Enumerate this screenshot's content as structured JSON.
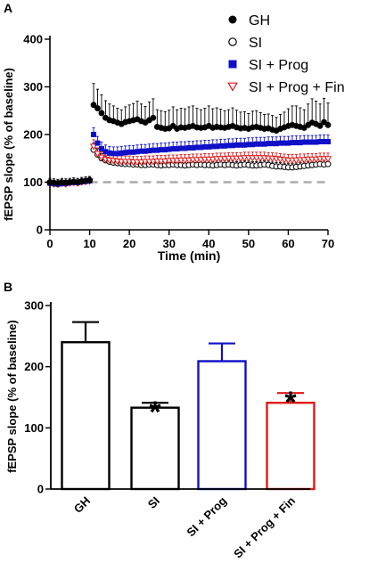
{
  "panels": {
    "a_label": "A",
    "b_label": "B"
  },
  "colors": {
    "gh": "#000000",
    "si": "#000000",
    "si_prog": "#1010c8",
    "si_prog_fin": "#e01818",
    "baseline": "#aaaaaa"
  },
  "chart_data": [
    {
      "panel": "A",
      "type": "scatter",
      "xlabel": "Time (min)",
      "ylabel": "fEPSP slope (% of baseline)",
      "xlim": [
        0,
        70
      ],
      "ylim": [
        0,
        400
      ],
      "xticks": [
        "0",
        "10",
        "20",
        "30",
        "40",
        "50",
        "60",
        "70"
      ],
      "yticks": [
        "0",
        "100",
        "200",
        "300",
        "400"
      ],
      "reference_line": 100,
      "legend_position": "top-right",
      "series": [
        {
          "name": "GH",
          "marker": "filled-circle",
          "color": "#000000",
          "x": [
            0,
            1,
            2,
            3,
            4,
            5,
            6,
            7,
            8,
            9,
            10,
            11,
            12,
            13,
            14,
            15,
            16,
            17,
            18,
            19,
            20,
            21,
            22,
            23,
            24,
            25,
            26,
            27,
            28,
            29,
            30,
            31,
            32,
            33,
            34,
            35,
            36,
            37,
            38,
            39,
            40,
            41,
            42,
            43,
            44,
            45,
            46,
            47,
            48,
            49,
            50,
            51,
            52,
            53,
            54,
            55,
            56,
            57,
            58,
            59,
            60,
            61,
            62,
            63,
            64,
            65,
            66,
            67,
            68,
            69,
            70
          ],
          "y": [
            100,
            99,
            98,
            100,
            99,
            100,
            101,
            100,
            102,
            103,
            104,
            262,
            255,
            245,
            235,
            230,
            228,
            225,
            222,
            226,
            228,
            230,
            232,
            228,
            225,
            230,
            235,
            216,
            214,
            212,
            213,
            218,
            212,
            215,
            214,
            216,
            218,
            215,
            214,
            215,
            218,
            214,
            216,
            215,
            214,
            216,
            218,
            215,
            213,
            214,
            212,
            215,
            216,
            214,
            212,
            213,
            210,
            208,
            212,
            215,
            218,
            220,
            218,
            216,
            214,
            220,
            225,
            222,
            218,
            226,
            220
          ],
          "error": [
            8,
            8,
            8,
            8,
            8,
            8,
            8,
            8,
            8,
            8,
            8,
            45,
            40,
            38,
            36,
            34,
            32,
            30,
            30,
            32,
            34,
            35,
            38,
            36,
            34,
            38,
            40,
            36,
            36,
            36,
            38,
            40,
            40,
            40,
            40,
            42,
            42,
            40,
            38,
            40,
            42,
            40,
            40,
            38,
            36,
            36,
            38,
            36,
            34,
            34,
            32,
            34,
            34,
            32,
            30,
            30,
            30,
            28,
            30,
            32,
            36,
            40,
            42,
            40,
            38,
            44,
            50,
            48,
            46,
            50,
            46
          ]
        },
        {
          "name": "SI",
          "marker": "open-circle",
          "color": "#000000",
          "x": [
            0,
            1,
            2,
            3,
            4,
            5,
            6,
            7,
            8,
            9,
            10,
            11,
            12,
            13,
            14,
            15,
            16,
            17,
            18,
            19,
            20,
            21,
            22,
            23,
            24,
            25,
            26,
            27,
            28,
            29,
            30,
            31,
            32,
            33,
            34,
            35,
            36,
            37,
            38,
            39,
            40,
            41,
            42,
            43,
            44,
            45,
            46,
            47,
            48,
            49,
            50,
            51,
            52,
            53,
            54,
            55,
            56,
            57,
            58,
            59,
            60,
            61,
            62,
            63,
            64,
            65,
            66,
            67,
            68,
            69,
            70
          ],
          "y": [
            99,
            97,
            96,
            98,
            97,
            99,
            100,
            99,
            101,
            102,
            104,
            168,
            158,
            150,
            146,
            143,
            141,
            140,
            139,
            138,
            138,
            137,
            137,
            136,
            136,
            137,
            137,
            136,
            135,
            136,
            136,
            137,
            136,
            136,
            135,
            136,
            137,
            136,
            137,
            136,
            136,
            135,
            136,
            137,
            136,
            137,
            136,
            135,
            136,
            137,
            136,
            135,
            135,
            136,
            137,
            136,
            134,
            133,
            133,
            132,
            131,
            131,
            132,
            133,
            134,
            135,
            136,
            137,
            138,
            137,
            138
          ],
          "error": [
            6,
            6,
            6,
            6,
            6,
            6,
            6,
            6,
            6,
            6,
            6,
            14,
            12,
            10,
            9,
            8,
            8,
            8,
            8,
            8,
            8,
            8,
            8,
            8,
            8,
            8,
            8,
            8,
            8,
            8,
            8,
            8,
            8,
            8,
            8,
            8,
            8,
            8,
            8,
            8,
            8,
            8,
            8,
            8,
            8,
            8,
            8,
            8,
            8,
            8,
            8,
            8,
            8,
            8,
            8,
            8,
            8,
            8,
            8,
            8,
            8,
            8,
            8,
            8,
            8,
            8,
            8,
            8,
            8,
            8,
            8
          ]
        },
        {
          "name": "SI + Prog",
          "marker": "filled-square",
          "color": "#1010c8",
          "x": [
            0,
            1,
            2,
            3,
            4,
            5,
            6,
            7,
            8,
            9,
            10,
            11,
            12,
            13,
            14,
            15,
            16,
            17,
            18,
            19,
            20,
            21,
            22,
            23,
            24,
            25,
            26,
            27,
            28,
            29,
            30,
            31,
            32,
            33,
            34,
            35,
            36,
            37,
            38,
            39,
            40,
            41,
            42,
            43,
            44,
            45,
            46,
            47,
            48,
            49,
            50,
            51,
            52,
            53,
            54,
            55,
            56,
            57,
            58,
            59,
            60,
            61,
            62,
            63,
            64,
            65,
            66,
            67,
            68,
            69,
            70
          ],
          "y": [
            98,
            97,
            96,
            97,
            98,
            99,
            100,
            99,
            101,
            102,
            103,
            200,
            182,
            170,
            164,
            161,
            160,
            160,
            161,
            162,
            163,
            163,
            164,
            165,
            165,
            166,
            167,
            167,
            168,
            168,
            169,
            170,
            170,
            171,
            171,
            172,
            172,
            173,
            173,
            174,
            174,
            175,
            175,
            176,
            176,
            177,
            177,
            178,
            178,
            178,
            179,
            179,
            180,
            180,
            180,
            181,
            181,
            181,
            182,
            182,
            182,
            183,
            183,
            183,
            184,
            184,
            184,
            184,
            185,
            185,
            185
          ],
          "error": [
            5,
            5,
            5,
            5,
            5,
            5,
            5,
            5,
            5,
            5,
            5,
            14,
            14,
            14,
            14,
            14,
            14,
            14,
            14,
            14,
            14,
            14,
            14,
            14,
            14,
            14,
            14,
            14,
            14,
            14,
            14,
            14,
            14,
            14,
            14,
            14,
            14,
            14,
            14,
            14,
            14,
            14,
            14,
            14,
            14,
            14,
            14,
            14,
            14,
            14,
            14,
            14,
            14,
            14,
            14,
            14,
            14,
            14,
            14,
            14,
            14,
            14,
            14,
            14,
            14,
            14,
            14,
            14,
            14,
            14,
            14
          ]
        },
        {
          "name": "SI + Prog + Fin",
          "marker": "open-triangle-down",
          "color": "#e01818",
          "x": [
            0,
            1,
            2,
            3,
            4,
            5,
            6,
            7,
            8,
            9,
            10,
            11,
            12,
            13,
            14,
            15,
            16,
            17,
            18,
            19,
            20,
            21,
            22,
            23,
            24,
            25,
            26,
            27,
            28,
            29,
            30,
            31,
            32,
            33,
            34,
            35,
            36,
            37,
            38,
            39,
            40,
            41,
            42,
            43,
            44,
            45,
            46,
            47,
            48,
            49,
            50,
            51,
            52,
            53,
            54,
            55,
            56,
            57,
            58,
            59,
            60,
            61,
            62,
            63,
            64,
            65,
            66,
            67,
            68,
            69,
            70
          ],
          "y": [
            97,
            96,
            95,
            97,
            96,
            98,
            99,
            98,
            100,
            101,
            102,
            175,
            160,
            152,
            148,
            146,
            145,
            144,
            143,
            143,
            143,
            142,
            142,
            142,
            143,
            143,
            143,
            144,
            144,
            144,
            145,
            145,
            145,
            146,
            146,
            146,
            147,
            147,
            147,
            148,
            148,
            148,
            149,
            149,
            149,
            150,
            150,
            150,
            150,
            151,
            151,
            151,
            151,
            151,
            151,
            150,
            150,
            149,
            148,
            147,
            146,
            146,
            146,
            147,
            147,
            148,
            148,
            148,
            149,
            149,
            149
          ],
          "error": [
            5,
            5,
            5,
            5,
            5,
            5,
            5,
            5,
            5,
            5,
            5,
            14,
            12,
            12,
            12,
            12,
            12,
            12,
            12,
            12,
            12,
            12,
            12,
            12,
            12,
            12,
            12,
            12,
            12,
            12,
            12,
            12,
            12,
            12,
            12,
            12,
            12,
            12,
            12,
            12,
            12,
            12,
            12,
            12,
            12,
            12,
            12,
            12,
            12,
            12,
            12,
            12,
            12,
            12,
            12,
            12,
            12,
            12,
            12,
            12,
            12,
            12,
            12,
            12,
            12,
            12,
            12,
            12,
            12,
            12,
            12
          ]
        }
      ]
    },
    {
      "panel": "B",
      "type": "bar",
      "ylabel": "fEPSP slope (% of baseline)",
      "ylim": [
        0,
        300
      ],
      "yticks": [
        "0",
        "100",
        "200",
        "300"
      ],
      "categories": [
        "GH",
        "SI",
        "SI + Prog",
        "SI + Prog + Fin"
      ],
      "values": [
        240,
        133,
        209,
        141
      ],
      "errors": [
        33,
        8,
        29,
        16
      ],
      "bar_colors": [
        "#000000",
        "#000000",
        "#1010c8",
        "#e01818"
      ],
      "significance": [
        "",
        "*",
        "",
        "*"
      ]
    }
  ]
}
